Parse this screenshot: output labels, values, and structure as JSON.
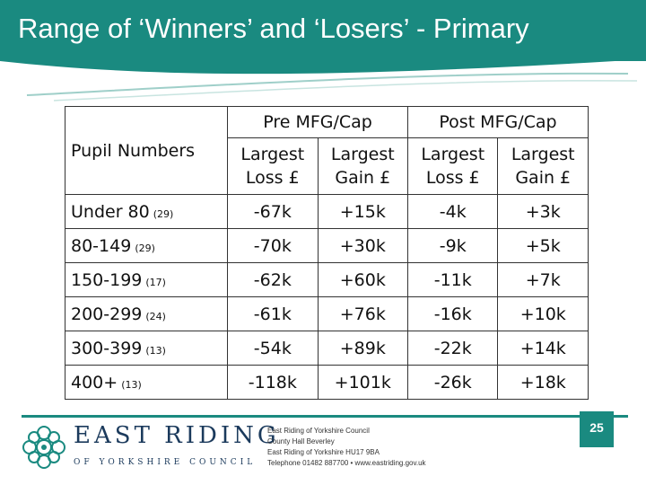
{
  "slide": {
    "title": "Range of ‘Winners’ and ‘Losers’ - Primary",
    "page_number": "25"
  },
  "table": {
    "pupil_header": "Pupil Numbers",
    "groups": [
      "Pre MFG/Cap",
      "Post MFG/Cap"
    ],
    "sub_headers": [
      [
        "Largest",
        "Loss £"
      ],
      [
        "Largest",
        "Gain £"
      ],
      [
        "Largest",
        "Loss £"
      ],
      [
        "Largest",
        "Gain £"
      ]
    ],
    "rows": [
      {
        "label": "Under 80",
        "count": "(29)",
        "values": [
          "-67k",
          "+15k",
          "-4k",
          "+3k"
        ]
      },
      {
        "label": "80-149",
        "count": "(29)",
        "values": [
          "-70k",
          "+30k",
          "-9k",
          "+5k"
        ]
      },
      {
        "label": "150-199",
        "count": "(17)",
        "values": [
          "-62k",
          "+60k",
          "-11k",
          "+7k"
        ]
      },
      {
        "label": "200-299",
        "count": "(24)",
        "values": [
          "-61k",
          "+76k",
          "-16k",
          "+10k"
        ]
      },
      {
        "label": "300-399",
        "count": "(13)",
        "values": [
          "-54k",
          "+89k",
          "-22k",
          "+14k"
        ]
      },
      {
        "label": "400+",
        "count": "(13)",
        "values": [
          "-118k",
          "+101k",
          "-26k",
          "+18k"
        ]
      }
    ]
  },
  "footer": {
    "org_name": "EAST RIDING",
    "org_sub": "OF YORKSHIRE COUNCIL",
    "address_lines": [
      "East Riding of Yorkshire Council",
      "County Hall Beverley",
      "East Riding of Yorkshire HU17 9BA",
      "Telephone 01482 887700 • www.eastriding.gov.uk"
    ]
  },
  "colors": {
    "accent": "#1a8a80",
    "org_text": "#1b3a5c"
  },
  "icons": {
    "logo": "yorkshire-rose-emblem-icon"
  }
}
